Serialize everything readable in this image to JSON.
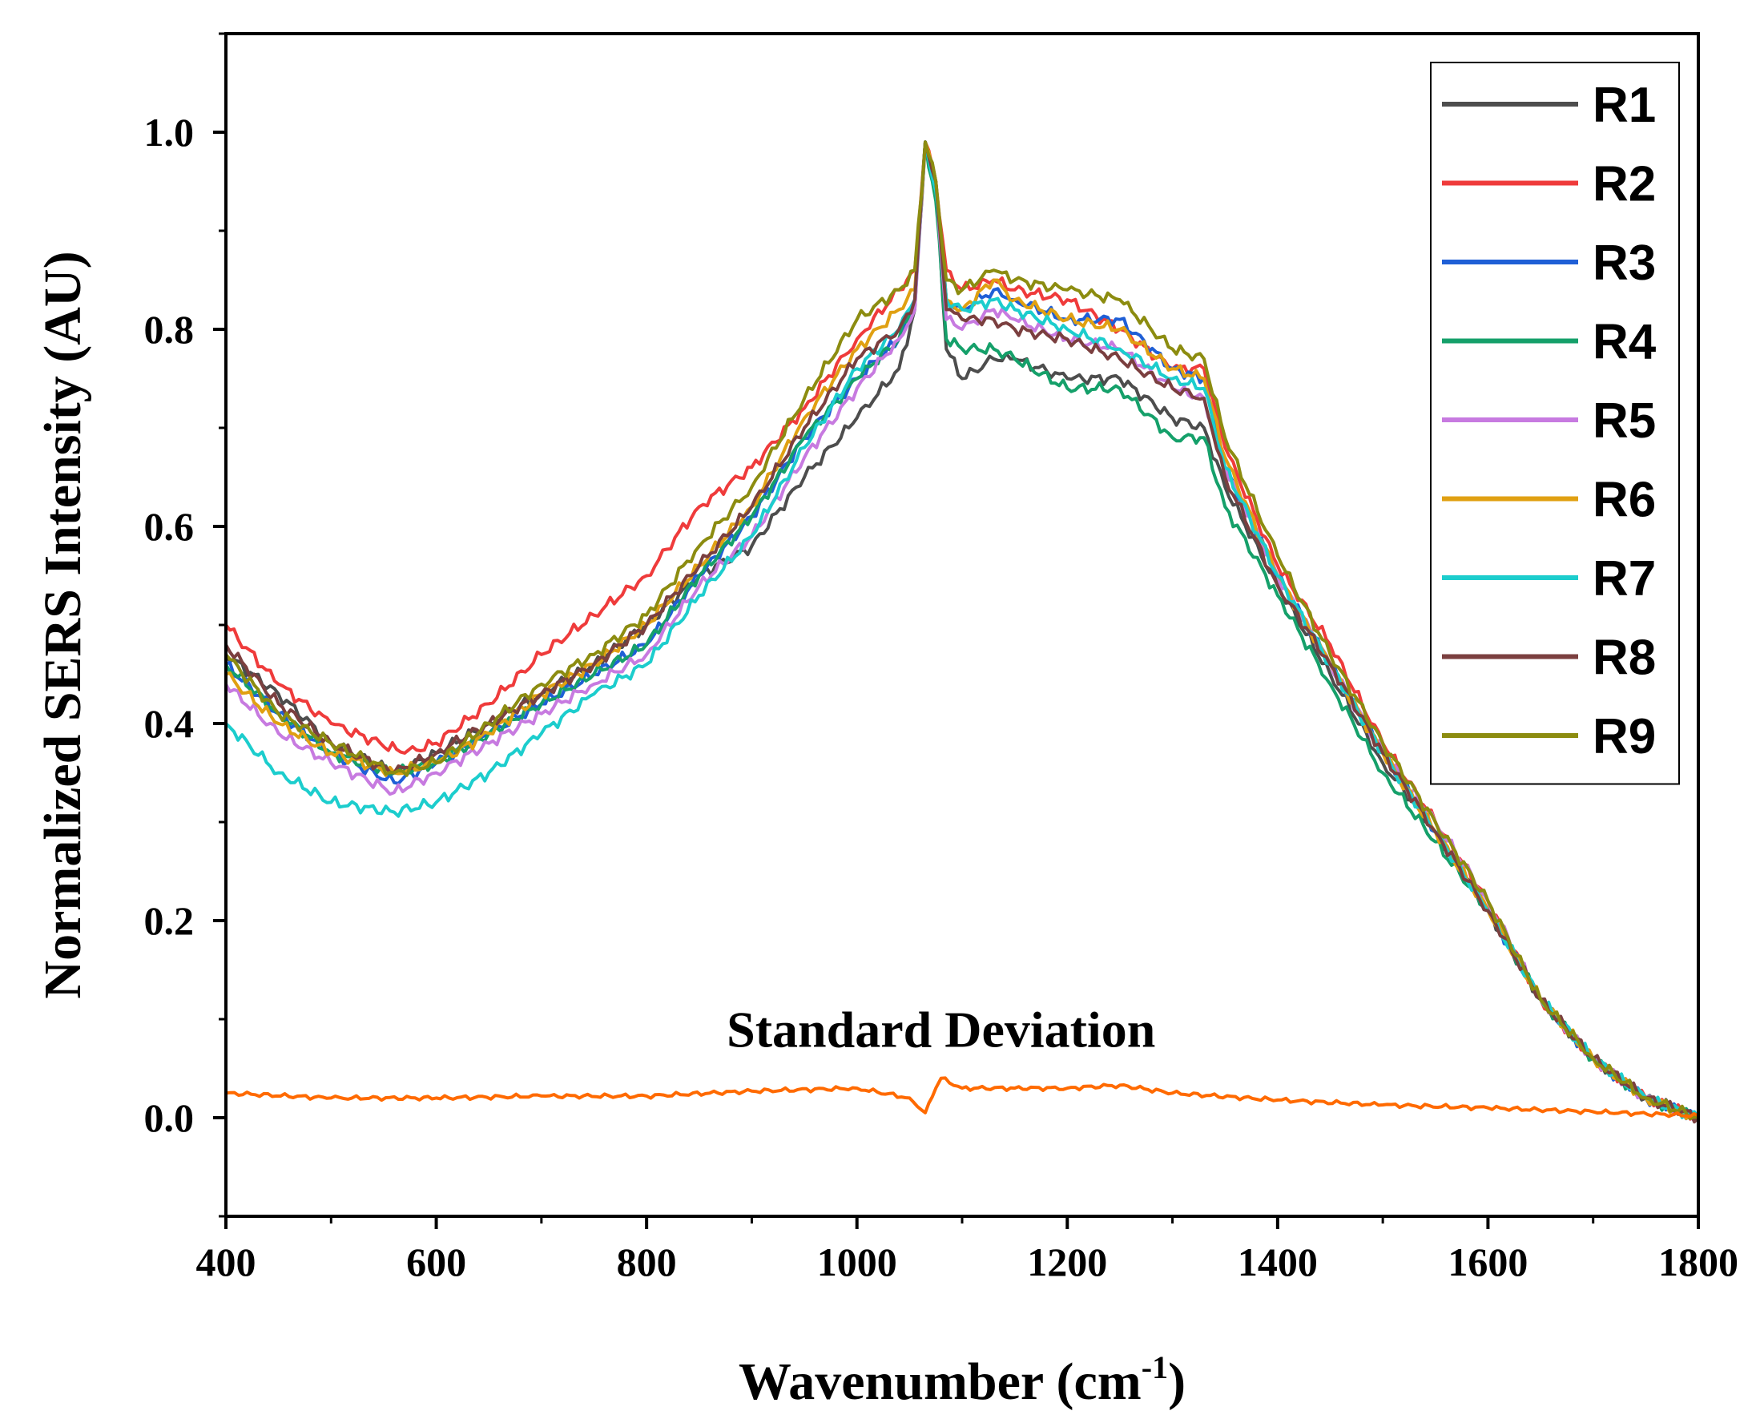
{
  "chart_data": {
    "type": "line",
    "title": "",
    "xlabel": "Wavenumber (cm",
    "xlabel_superscript": "-1",
    "xlabel_suffix": ")",
    "ylabel": "Normalized SERS Intensity (AU)",
    "xlim": [
      400,
      1800
    ],
    "ylim": [
      -0.1,
      1.1
    ],
    "x_ticks": [
      400,
      600,
      800,
      1000,
      1200,
      1400,
      1600,
      1800
    ],
    "x_tick_labels": [
      "400",
      "600",
      "800",
      "1000",
      "1200",
      "1400",
      "1600",
      "1800"
    ],
    "y_ticks": [
      0.0,
      0.2,
      0.4,
      0.6,
      0.8,
      1.0
    ],
    "y_tick_labels": [
      "0.0",
      "0.2",
      "0.4",
      "0.6",
      "0.8",
      "1.0"
    ],
    "grid": false,
    "legend_position": "top-right",
    "annotations": [
      {
        "text": "Standard Deviation",
        "x": 1080,
        "y": 0.09
      }
    ],
    "series": [
      {
        "name": "R1",
        "color": "#4d4d4d",
        "x": [
          400,
          450,
          500,
          560,
          600,
          650,
          700,
          750,
          800,
          850,
          900,
          950,
          1000,
          1040,
          1055,
          1065,
          1075,
          1085,
          1100,
          1130,
          1150,
          1200,
          1250,
          1300,
          1330,
          1350,
          1400,
          1450,
          1500,
          1550,
          1600,
          1650,
          1700,
          1750,
          1800
        ],
        "y": [
          0.47,
          0.43,
          0.38,
          0.35,
          0.37,
          0.4,
          0.43,
          0.46,
          0.5,
          0.55,
          0.58,
          0.65,
          0.71,
          0.76,
          0.82,
          0.99,
          0.95,
          0.78,
          0.75,
          0.77,
          0.77,
          0.75,
          0.75,
          0.71,
          0.7,
          0.64,
          0.54,
          0.45,
          0.36,
          0.29,
          0.21,
          0.12,
          0.06,
          0.02,
          0.0
        ]
      },
      {
        "name": "R2",
        "color": "#ef3b3b",
        "x": [
          400,
          450,
          500,
          570,
          600,
          650,
          700,
          750,
          800,
          850,
          900,
          950,
          1000,
          1040,
          1055,
          1065,
          1075,
          1085,
          1100,
          1130,
          1150,
          1200,
          1250,
          1300,
          1330,
          1350,
          1400,
          1450,
          1500,
          1550,
          1600,
          1650,
          1700,
          1750,
          1800
        ],
        "y": [
          0.5,
          0.44,
          0.4,
          0.37,
          0.38,
          0.42,
          0.47,
          0.51,
          0.55,
          0.62,
          0.66,
          0.72,
          0.79,
          0.84,
          0.86,
          0.99,
          0.95,
          0.86,
          0.84,
          0.85,
          0.84,
          0.83,
          0.8,
          0.76,
          0.76,
          0.68,
          0.56,
          0.48,
          0.38,
          0.3,
          0.22,
          0.12,
          0.06,
          0.02,
          0.0
        ]
      },
      {
        "name": "R3",
        "color": "#1f5fd6",
        "x": [
          400,
          450,
          500,
          560,
          600,
          650,
          700,
          750,
          800,
          850,
          900,
          950,
          1000,
          1040,
          1055,
          1065,
          1075,
          1085,
          1100,
          1130,
          1150,
          1200,
          1250,
          1300,
          1330,
          1350,
          1400,
          1450,
          1500,
          1550,
          1600,
          1650,
          1700,
          1750,
          1800
        ],
        "y": [
          0.46,
          0.41,
          0.37,
          0.34,
          0.36,
          0.39,
          0.42,
          0.45,
          0.48,
          0.55,
          0.61,
          0.69,
          0.75,
          0.79,
          0.83,
          0.99,
          0.95,
          0.83,
          0.82,
          0.84,
          0.83,
          0.81,
          0.81,
          0.76,
          0.75,
          0.66,
          0.55,
          0.46,
          0.37,
          0.29,
          0.21,
          0.12,
          0.06,
          0.02,
          0.0
        ]
      },
      {
        "name": "R4",
        "color": "#15a06a",
        "x": [
          400,
          450,
          500,
          560,
          600,
          650,
          700,
          750,
          800,
          850,
          900,
          950,
          1000,
          1040,
          1055,
          1065,
          1075,
          1085,
          1100,
          1130,
          1150,
          1200,
          1250,
          1300,
          1330,
          1350,
          1400,
          1450,
          1500,
          1550,
          1600,
          1650,
          1700,
          1750,
          1800
        ],
        "y": [
          0.46,
          0.41,
          0.37,
          0.35,
          0.36,
          0.39,
          0.42,
          0.45,
          0.48,
          0.55,
          0.61,
          0.69,
          0.75,
          0.79,
          0.83,
          0.99,
          0.93,
          0.79,
          0.78,
          0.78,
          0.77,
          0.74,
          0.74,
          0.69,
          0.69,
          0.62,
          0.53,
          0.44,
          0.35,
          0.28,
          0.21,
          0.12,
          0.06,
          0.02,
          0.0
        ]
      },
      {
        "name": "R5",
        "color": "#c77ae0",
        "x": [
          400,
          450,
          500,
          560,
          600,
          650,
          700,
          750,
          800,
          850,
          900,
          950,
          1000,
          1040,
          1055,
          1065,
          1075,
          1085,
          1100,
          1130,
          1150,
          1200,
          1250,
          1300,
          1330,
          1350,
          1400,
          1450,
          1500,
          1550,
          1600,
          1650,
          1700,
          1750,
          1800
        ],
        "y": [
          0.44,
          0.39,
          0.36,
          0.33,
          0.35,
          0.38,
          0.41,
          0.44,
          0.47,
          0.54,
          0.59,
          0.67,
          0.74,
          0.79,
          0.82,
          0.99,
          0.95,
          0.81,
          0.8,
          0.82,
          0.81,
          0.79,
          0.78,
          0.74,
          0.73,
          0.66,
          0.55,
          0.46,
          0.37,
          0.3,
          0.22,
          0.12,
          0.06,
          0.02,
          0.0
        ]
      },
      {
        "name": "R6",
        "color": "#e0a012",
        "x": [
          400,
          450,
          500,
          560,
          600,
          650,
          700,
          750,
          800,
          850,
          900,
          950,
          1000,
          1040,
          1055,
          1065,
          1075,
          1085,
          1100,
          1130,
          1150,
          1200,
          1250,
          1300,
          1330,
          1350,
          1400,
          1450,
          1500,
          1550,
          1600,
          1650,
          1700,
          1750,
          1800
        ],
        "y": [
          0.45,
          0.4,
          0.37,
          0.35,
          0.36,
          0.39,
          0.43,
          0.46,
          0.5,
          0.56,
          0.62,
          0.71,
          0.78,
          0.82,
          0.84,
          0.99,
          0.95,
          0.83,
          0.82,
          0.85,
          0.83,
          0.81,
          0.8,
          0.76,
          0.75,
          0.67,
          0.55,
          0.46,
          0.37,
          0.29,
          0.21,
          0.12,
          0.06,
          0.02,
          0.0
        ]
      },
      {
        "name": "R7",
        "color": "#1ccdcd",
        "x": [
          400,
          450,
          500,
          560,
          600,
          650,
          700,
          750,
          800,
          850,
          900,
          950,
          1000,
          1040,
          1055,
          1065,
          1075,
          1085,
          1100,
          1130,
          1150,
          1200,
          1250,
          1300,
          1330,
          1350,
          1400,
          1450,
          1500,
          1550,
          1600,
          1650,
          1700,
          1750,
          1800
        ],
        "y": [
          0.4,
          0.35,
          0.32,
          0.31,
          0.32,
          0.35,
          0.39,
          0.43,
          0.46,
          0.53,
          0.59,
          0.68,
          0.76,
          0.8,
          0.83,
          0.99,
          0.94,
          0.83,
          0.82,
          0.83,
          0.82,
          0.8,
          0.78,
          0.75,
          0.74,
          0.66,
          0.55,
          0.46,
          0.37,
          0.29,
          0.21,
          0.12,
          0.06,
          0.02,
          0.0
        ]
      },
      {
        "name": "R8",
        "color": "#7b3f3f",
        "x": [
          400,
          450,
          500,
          560,
          600,
          650,
          700,
          750,
          800,
          850,
          900,
          950,
          1000,
          1040,
          1055,
          1065,
          1075,
          1085,
          1100,
          1130,
          1150,
          1200,
          1250,
          1300,
          1330,
          1350,
          1400,
          1450,
          1500,
          1550,
          1600,
          1650,
          1700,
          1750,
          1800
        ],
        "y": [
          0.48,
          0.42,
          0.38,
          0.35,
          0.37,
          0.4,
          0.43,
          0.46,
          0.5,
          0.56,
          0.62,
          0.7,
          0.77,
          0.8,
          0.83,
          0.99,
          0.95,
          0.82,
          0.81,
          0.81,
          0.8,
          0.79,
          0.77,
          0.74,
          0.73,
          0.65,
          0.54,
          0.46,
          0.37,
          0.29,
          0.21,
          0.12,
          0.06,
          0.02,
          0.0
        ]
      },
      {
        "name": "R9",
        "color": "#8c8c10",
        "x": [
          400,
          450,
          500,
          560,
          600,
          650,
          700,
          750,
          800,
          850,
          900,
          950,
          1000,
          1040,
          1055,
          1065,
          1075,
          1085,
          1100,
          1130,
          1150,
          1200,
          1250,
          1300,
          1330,
          1350,
          1400,
          1450,
          1500,
          1550,
          1600,
          1650,
          1700,
          1750,
          1800
        ],
        "y": [
          0.47,
          0.41,
          0.38,
          0.35,
          0.36,
          0.4,
          0.44,
          0.47,
          0.51,
          0.58,
          0.64,
          0.73,
          0.81,
          0.84,
          0.86,
          0.99,
          0.95,
          0.85,
          0.84,
          0.86,
          0.85,
          0.84,
          0.83,
          0.78,
          0.77,
          0.69,
          0.57,
          0.47,
          0.38,
          0.3,
          0.22,
          0.12,
          0.06,
          0.02,
          0.0
        ]
      },
      {
        "name": "Standard Deviation",
        "color": "#ff6a00",
        "legend": false,
        "x": [
          400,
          500,
          600,
          700,
          800,
          900,
          1000,
          1050,
          1065,
          1075,
          1080,
          1100,
          1150,
          1200,
          1250,
          1300,
          1400,
          1500,
          1600,
          1700,
          1800
        ],
        "y": [
          0.025,
          0.02,
          0.02,
          0.022,
          0.022,
          0.027,
          0.03,
          0.02,
          0.005,
          0.03,
          0.04,
          0.03,
          0.03,
          0.03,
          0.033,
          0.025,
          0.018,
          0.013,
          0.01,
          0.006,
          0.002
        ]
      }
    ]
  }
}
